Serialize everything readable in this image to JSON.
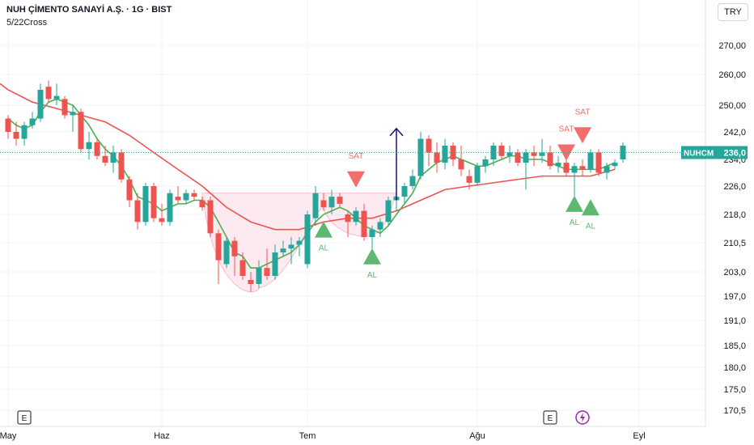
{
  "header": {
    "title": "NUH ÇİMENTO SANAYİ A.Ş. · 1G · BIST",
    "indicator": "5/22Cross"
  },
  "currency_button": "TRY",
  "symbol_tag": {
    "symbol": "NUHCM",
    "price": "236,0"
  },
  "colors": {
    "up": "#26a69a",
    "down": "#ef5350",
    "ma_fast": "#4caf50",
    "ma_slow": "#ef5350",
    "pattern_fill": "#fce4ec",
    "arrow": "#1a0f7a",
    "sell_marker": "#f26d6d",
    "buy_marker": "#5fb872"
  },
  "event_badges": [
    {
      "label": "E",
      "icon": "earnings-icon",
      "day": 2
    },
    {
      "label": "E",
      "icon": "earnings-icon",
      "day": 67
    },
    {
      "label": "",
      "icon": "lightning-icon",
      "day": 71
    }
  ],
  "chart_data": {
    "type": "candlestick",
    "y_ticks": [
      "270,00",
      "260,00",
      "250,00",
      "242,0",
      "234,0",
      "226,0",
      "218,0",
      "210,5",
      "203,0",
      "197,0",
      "191,0",
      "185,0",
      "180,0",
      "175,0",
      "170,5"
    ],
    "y_tick_values": [
      270,
      260,
      250,
      242,
      234,
      226,
      218,
      210.5,
      203,
      197,
      191,
      185,
      180,
      175,
      170.5
    ],
    "x_ticks": [
      {
        "label": "May",
        "day": 0
      },
      {
        "label": "Haz",
        "day": 19
      },
      {
        "label": "Tem",
        "day": 37
      },
      {
        "label": "Ağu",
        "day": 58
      },
      {
        "label": "Eyl",
        "day": 78
      }
    ],
    "last_price": 236.0,
    "ohlc": [
      [
        246,
        247,
        240,
        242
      ],
      [
        242,
        245,
        238,
        240
      ],
      [
        240,
        245,
        238,
        244
      ],
      [
        244,
        248,
        243,
        246
      ],
      [
        246,
        257,
        245,
        255
      ],
      [
        256,
        258,
        251,
        252
      ],
      [
        252,
        257,
        250,
        253
      ],
      [
        252,
        253,
        246,
        247
      ],
      [
        247,
        250,
        242,
        248
      ],
      [
        248,
        249,
        236,
        237
      ],
      [
        237,
        242,
        234,
        239
      ],
      [
        239,
        240,
        234,
        235
      ],
      [
        235,
        238,
        232,
        233
      ],
      [
        233,
        238,
        230,
        236
      ],
      [
        236,
        237,
        227,
        228
      ],
      [
        228,
        229,
        220,
        222
      ],
      [
        222,
        224,
        214,
        216
      ],
      [
        216,
        227,
        215,
        226
      ],
      [
        226,
        227,
        216,
        217
      ],
      [
        217,
        221,
        215,
        216
      ],
      [
        216,
        225,
        215,
        224
      ],
      [
        223,
        226,
        221,
        222
      ],
      [
        222,
        225,
        221,
        224
      ],
      [
        224,
        225,
        222,
        223
      ],
      [
        222,
        223,
        219,
        220
      ],
      [
        222,
        223,
        212,
        213
      ],
      [
        213,
        214,
        200,
        206
      ],
      [
        205,
        212,
        204,
        211
      ],
      [
        211,
        212,
        202,
        207
      ],
      [
        206,
        208,
        201,
        202
      ],
      [
        201,
        203,
        198,
        200
      ],
      [
        200,
        206,
        199,
        204
      ],
      [
        204,
        209,
        201,
        202
      ],
      [
        202,
        210,
        201,
        208
      ],
      [
        208,
        211,
        207,
        209
      ],
      [
        209,
        212,
        205,
        210
      ],
      [
        210,
        212,
        207,
        211
      ],
      [
        205,
        219,
        204,
        218
      ],
      [
        217,
        226,
        215,
        224
      ],
      [
        222,
        224,
        219,
        220
      ],
      [
        220,
        225,
        218,
        223
      ],
      [
        223,
        224,
        220,
        221
      ],
      [
        218,
        219,
        212,
        216
      ],
      [
        216,
        220,
        215,
        219
      ],
      [
        219,
        221,
        211,
        212
      ],
      [
        212,
        215,
        209,
        214
      ],
      [
        214,
        217,
        212,
        216
      ],
      [
        216,
        223,
        215,
        222
      ],
      [
        222,
        226,
        219,
        223
      ],
      [
        223,
        227,
        221,
        226
      ],
      [
        226,
        231,
        225,
        229
      ],
      [
        229,
        242,
        228,
        240
      ],
      [
        240,
        241,
        232,
        236
      ],
      [
        236,
        239,
        230,
        233
      ],
      [
        233,
        240,
        231,
        238
      ],
      [
        238,
        239,
        232,
        234
      ],
      [
        234,
        238,
        229,
        231
      ],
      [
        229,
        231,
        225,
        227
      ],
      [
        227,
        233,
        226,
        232
      ],
      [
        232,
        235,
        230,
        234
      ],
      [
        234,
        239,
        232,
        238
      ],
      [
        238,
        239,
        234,
        235
      ],
      [
        235,
        238,
        233,
        236
      ],
      [
        236,
        237,
        232,
        233
      ],
      [
        233,
        237,
        225,
        236
      ],
      [
        236,
        238,
        232,
        235
      ],
      [
        235,
        240,
        233,
        236
      ],
      [
        236,
        238,
        231,
        232
      ],
      [
        232,
        235,
        230,
        233
      ],
      [
        233,
        235,
        229,
        230
      ],
      [
        230,
        233,
        219,
        232
      ],
      [
        232,
        234,
        229,
        231
      ],
      [
        231,
        237,
        230,
        236
      ],
      [
        236,
        237,
        229,
        230
      ],
      [
        230,
        233,
        228,
        232
      ],
      [
        232,
        234,
        231,
        233
      ],
      [
        234,
        239,
        233,
        238
      ]
    ],
    "ma_fast": [
      [
        0,
        246
      ],
      [
        1,
        244
      ],
      [
        2,
        243
      ],
      [
        3,
        244
      ],
      [
        4,
        248
      ],
      [
        5,
        251
      ],
      [
        6,
        252
      ],
      [
        7,
        251
      ],
      [
        8,
        250
      ],
      [
        9,
        247
      ],
      [
        10,
        244
      ],
      [
        11,
        240
      ],
      [
        12,
        237
      ],
      [
        13,
        235
      ],
      [
        14,
        232
      ],
      [
        15,
        228
      ],
      [
        16,
        223
      ],
      [
        17,
        222
      ],
      [
        18,
        221
      ],
      [
        19,
        219
      ],
      [
        20,
        220
      ],
      [
        21,
        221
      ],
      [
        22,
        221
      ],
      [
        23,
        222
      ],
      [
        24,
        222
      ],
      [
        25,
        220
      ],
      [
        26,
        216
      ],
      [
        27,
        212
      ],
      [
        28,
        208
      ],
      [
        29,
        207
      ],
      [
        30,
        204
      ],
      [
        31,
        204
      ],
      [
        32,
        205
      ],
      [
        33,
        206
      ],
      [
        34,
        207
      ],
      [
        35,
        208
      ],
      [
        36,
        210
      ],
      [
        37,
        213
      ],
      [
        38,
        216
      ],
      [
        39,
        218
      ],
      [
        40,
        219
      ],
      [
        41,
        220
      ],
      [
        42,
        219
      ],
      [
        43,
        217
      ],
      [
        44,
        215
      ],
      [
        45,
        214
      ],
      [
        46,
        213
      ],
      [
        47,
        215
      ],
      [
        48,
        218
      ],
      [
        49,
        221
      ],
      [
        50,
        224
      ],
      [
        51,
        229
      ],
      [
        52,
        231
      ],
      [
        53,
        233
      ],
      [
        54,
        234
      ],
      [
        55,
        235
      ],
      [
        56,
        234
      ],
      [
        57,
        233
      ],
      [
        58,
        232
      ],
      [
        59,
        232
      ],
      [
        60,
        233
      ],
      [
        61,
        234
      ],
      [
        62,
        235
      ],
      [
        63,
        235
      ],
      [
        64,
        234
      ],
      [
        65,
        234
      ],
      [
        66,
        234
      ],
      [
        67,
        233
      ],
      [
        68,
        232
      ],
      [
        69,
        231
      ],
      [
        70,
        231
      ],
      [
        71,
        231
      ],
      [
        72,
        231
      ],
      [
        73,
        231
      ],
      [
        74,
        232
      ],
      [
        75,
        233
      ]
    ],
    "ma_slow": [
      [
        0,
        255
      ],
      [
        3,
        251
      ],
      [
        6,
        249
      ],
      [
        9,
        247
      ],
      [
        12,
        245
      ],
      [
        15,
        241
      ],
      [
        18,
        236
      ],
      [
        21,
        231
      ],
      [
        24,
        226
      ],
      [
        27,
        220
      ],
      [
        30,
        216
      ],
      [
        33,
        214
      ],
      [
        36,
        214
      ],
      [
        39,
        216
      ],
      [
        42,
        217
      ],
      [
        45,
        217
      ],
      [
        48,
        219
      ],
      [
        51,
        222
      ],
      [
        54,
        225
      ],
      [
        57,
        226
      ],
      [
        60,
        227
      ],
      [
        63,
        228
      ],
      [
        66,
        229
      ],
      [
        69,
        229
      ],
      [
        72,
        229
      ],
      [
        75,
        231
      ]
    ],
    "pattern": {
      "rim_level": 224,
      "start_day": 24,
      "end_day": 48,
      "cup_bottom": 199,
      "handle_bottom": 213
    },
    "breakout_arrow": {
      "day": 48,
      "from": 222,
      "to": 243
    },
    "signals": [
      {
        "type": "AL",
        "day": 39,
        "value": 214,
        "label": "AL"
      },
      {
        "type": "SAT",
        "day": 43,
        "value": 228,
        "label": "SAT"
      },
      {
        "type": "AL",
        "day": 45,
        "value": 207,
        "label": "AL"
      },
      {
        "type": "SAT",
        "day": 69,
        "value": 236,
        "label": "SAT"
      },
      {
        "type": "SAT",
        "day": 71,
        "value": 241,
        "label": "SAT"
      },
      {
        "type": "AL",
        "day": 70,
        "value": 221,
        "label": "AL"
      },
      {
        "type": "AL",
        "day": 72,
        "value": 220,
        "label": "AL"
      }
    ]
  }
}
